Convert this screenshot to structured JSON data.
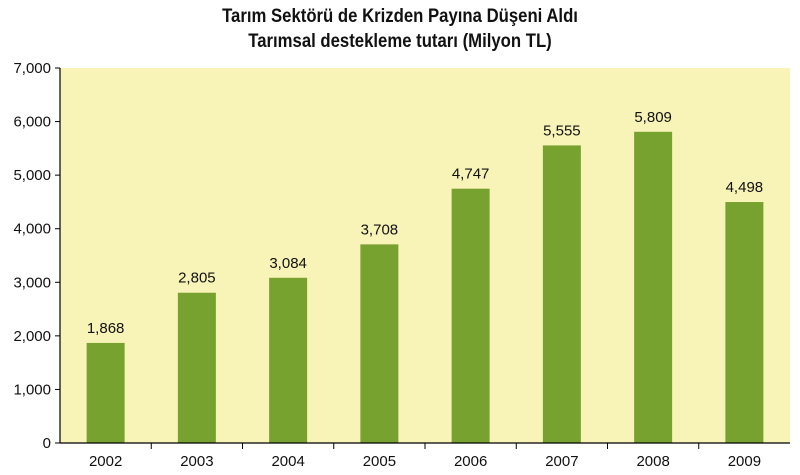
{
  "chart_data": {
    "type": "bar",
    "title": "Tarım Sektörü de Krizden Payına Düşeni Aldı",
    "subtitle": "Tarımsal destekleme tutarı (Milyon TL)",
    "categories": [
      "2002",
      "2003",
      "2004",
      "2005",
      "2006",
      "2007",
      "2008",
      "2009"
    ],
    "values": [
      1868,
      2805,
      3084,
      3708,
      4747,
      5555,
      5809,
      4498
    ],
    "value_labels": [
      "1,868",
      "2,805",
      "3,084",
      "3,708",
      "4,747",
      "5,555",
      "5,809",
      "4,498"
    ],
    "y_ticks": [
      "0",
      "1,000",
      "2,000",
      "3,000",
      "4,000",
      "5,000",
      "6,000",
      "7,000"
    ],
    "ylim": [
      0,
      7000
    ],
    "xlabel": "",
    "ylabel": "",
    "grid": false,
    "colors": {
      "plot_background": "#f8f3b6",
      "bar": "#78a22f",
      "axis": "#000000"
    }
  }
}
